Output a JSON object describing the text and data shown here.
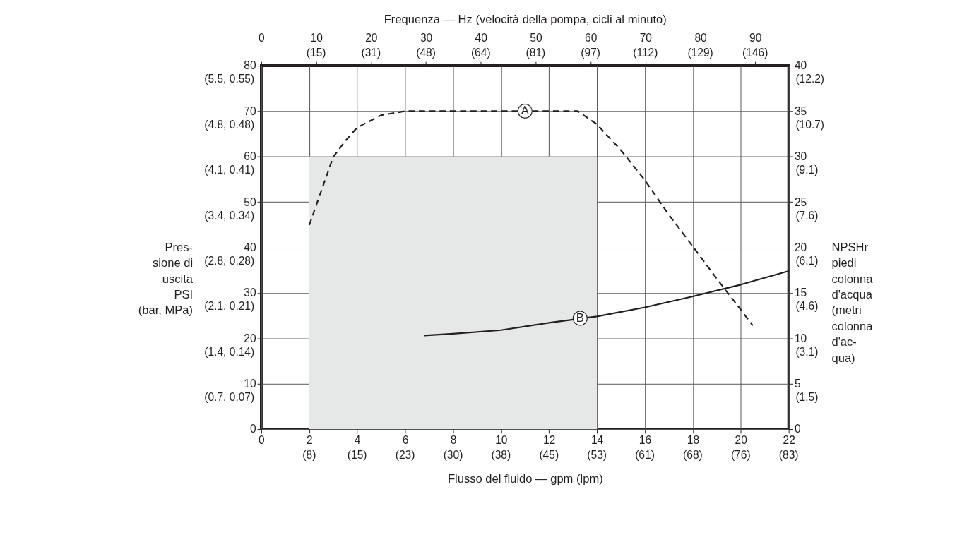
{
  "chart_data": {
    "type": "line",
    "xlabel": "Flusso del fluido — gpm (lpm)",
    "x2label": "Frequenza — Hz (velocità della pompa, cicli al minuto)",
    "ylabel": "Pres-\nsione di\nuscita\nPSI\n(bar, MPa)",
    "y2label": "NPSHr\npiedi\ncolonna\nd'acqua\n(metri\ncolonna\nd'ac-\nqua)",
    "xlim": [
      0,
      22
    ],
    "xticks": [
      0,
      2,
      4,
      6,
      8,
      10,
      12,
      14,
      16,
      18,
      20,
      22
    ],
    "x2lim": [
      0,
      96.1
    ],
    "x2ticks": [
      0,
      10,
      20,
      30,
      40,
      50,
      60,
      70,
      80,
      90
    ],
    "ylim": [
      0,
      80
    ],
    "yticks": [
      0,
      10,
      20,
      30,
      40,
      50,
      60,
      70,
      80
    ],
    "y2lim": [
      0,
      40
    ],
    "y2ticks": [
      0,
      5,
      10,
      15,
      20,
      25,
      30,
      35,
      40
    ],
    "grid": true,
    "series": [
      {
        "type": "area",
        "color": "#e6e7e7",
        "x": [
          2,
          14
        ],
        "values": [
          60,
          60
        ]
      },
      {
        "type": "line",
        "color": "#231f20",
        "line_style": "dashed",
        "x": [
          2,
          3,
          3.5,
          4,
          5,
          6,
          8,
          10,
          12,
          13.2,
          14,
          15,
          16,
          17,
          18,
          19,
          20,
          20.5
        ],
        "values": [
          44.9,
          59.9,
          63.4,
          66.4,
          69.1,
          70,
          70,
          70,
          70,
          70,
          67.1,
          61.4,
          54.8,
          47.2,
          40.2,
          33.1,
          26.3,
          22.8
        ]
      },
      {
        "type": "line",
        "color": "#231f20",
        "line_style": "solid",
        "axis": "y2",
        "x": [
          6.8,
          8,
          10,
          12,
          14,
          16,
          18,
          20,
          22
        ],
        "values": [
          10.3,
          10.5,
          10.9,
          11.7,
          12.4,
          13.4,
          14.6,
          15.9,
          17.4
        ]
      }
    ],
    "annotations": [
      {
        "text": "A",
        "x": 11,
        "y": 70
      },
      {
        "text": "B",
        "x": 13.3,
        "y": 24.4
      },
      "(8)",
      "(15)",
      "(23)",
      "(30)",
      "(38)",
      "(45)",
      "(53)",
      "(61)",
      "(68)",
      "(76)",
      "(83)",
      "(15)",
      "(31)",
      "(48)",
      "(64)",
      "(81)",
      "(97)",
      "(112)",
      "(129)",
      "(146)",
      "(0.7, 0.07)",
      "(1.4, 0.14)",
      "(2.1, 0.21)",
      "(2.8, 0.28)",
      "(3.4, 0.34)",
      "(4.1, 0.41)",
      "(4.8, 0.48)",
      "(5.5, 0.55)",
      "(1.5)",
      "(3.1)",
      "(4.6)",
      "(6.1)",
      "(7.6)",
      "(9.1)",
      "(10.7)",
      "(12.2)"
    ]
  }
}
